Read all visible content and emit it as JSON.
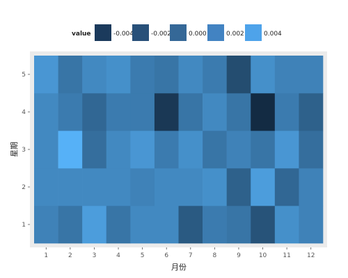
{
  "chart_data": {
    "type": "heatmap",
    "title": "",
    "xlabel": "月份",
    "ylabel": "星期",
    "x": [
      "1",
      "2",
      "3",
      "4",
      "5",
      "6",
      "7",
      "8",
      "9",
      "10",
      "11",
      "12"
    ],
    "y": [
      "1",
      "2",
      "3",
      "4",
      "5"
    ],
    "values": [
      [
        0.0015,
        0.0005,
        0.0035,
        0.0005,
        0.002,
        0.002,
        -0.0015,
        0.001,
        0.0005,
        -0.002,
        0.0025,
        0.0015
      ],
      [
        0.002,
        0.002,
        0.002,
        0.002,
        0.0015,
        0.002,
        0.002,
        0.0025,
        -0.001,
        0.0035,
        -0.0005,
        0.0015
      ],
      [
        0.002,
        0.005,
        0.0,
        0.002,
        0.003,
        0.001,
        0.0025,
        0.0005,
        0.0015,
        0.0005,
        0.003,
        0.0
      ],
      [
        0.002,
        0.001,
        -0.0005,
        0.001,
        0.001,
        -0.004,
        0.0005,
        0.002,
        0.0005,
        -0.005,
        0.001,
        -0.001
      ],
      [
        0.003,
        0.0005,
        0.002,
        0.0025,
        0.001,
        0.0005,
        0.002,
        0.001,
        -0.0025,
        0.0025,
        0.0015,
        0.0015
      ]
    ],
    "legend": {
      "title": "value",
      "position": "top",
      "breaks": [
        {
          "value": -0.004,
          "label": "-0.004",
          "color": "#1b3a5c"
        },
        {
          "value": -0.002,
          "label": "-0.002",
          "color": "#285079"
        },
        {
          "value": 0.0,
          "label": "0.000",
          "color": "#356897"
        },
        {
          "value": 0.002,
          "label": "0.002",
          "color": "#4283c2"
        },
        {
          "value": 0.004,
          "label": "0.004",
          "color": "#4ea3ea"
        }
      ]
    },
    "color_scale": {
      "low": "#132b43",
      "high": "#56b1f7"
    },
    "value_range": [
      -0.005,
      0.005
    ],
    "panel_background": "#ebebeb",
    "grid": false
  }
}
